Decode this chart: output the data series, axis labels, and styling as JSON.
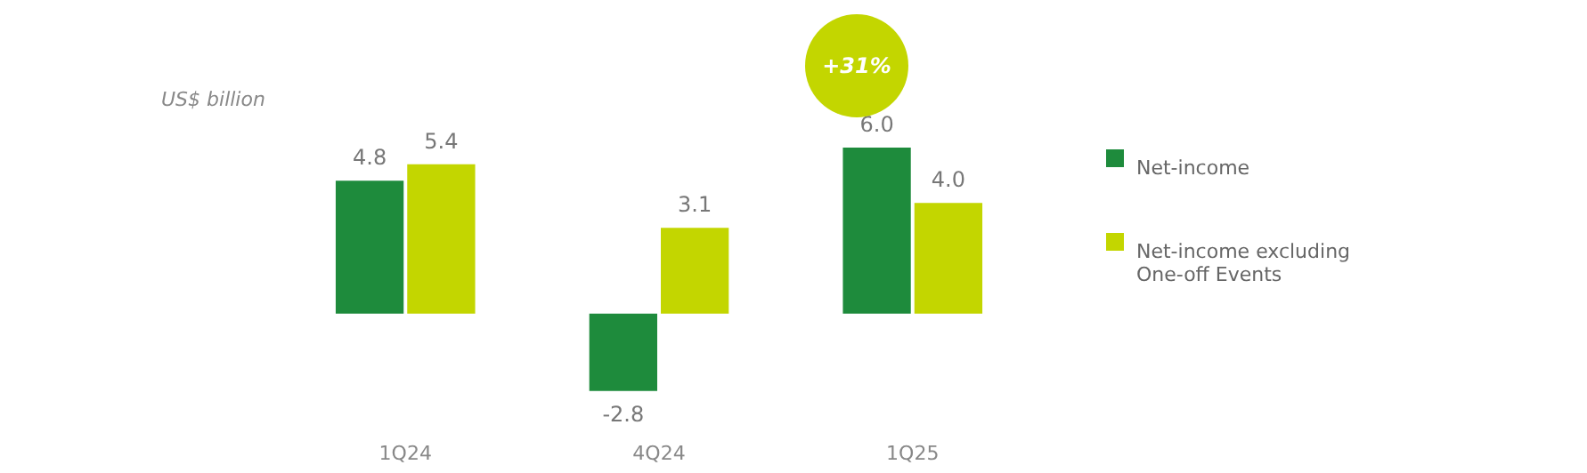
{
  "chart_data": {
    "type": "bar",
    "ylabel": "US$ billion",
    "categories": [
      "1Q24",
      "4Q24",
      "1Q25"
    ],
    "series": [
      {
        "name": "Net-income",
        "color": "#1e8b3c",
        "values": [
          4.8,
          -2.8,
          6.0
        ],
        "value_labels": [
          "4.8",
          "-2.8",
          "6.0"
        ]
      },
      {
        "name": "Net-income excluding One-off Events",
        "color": "#c3d600",
        "values": [
          5.4,
          3.1,
          4.0
        ],
        "value_labels": [
          "5.4",
          "3.1",
          "4.0"
        ]
      }
    ],
    "legend": "right",
    "annotations": [
      "+31%"
    ]
  }
}
